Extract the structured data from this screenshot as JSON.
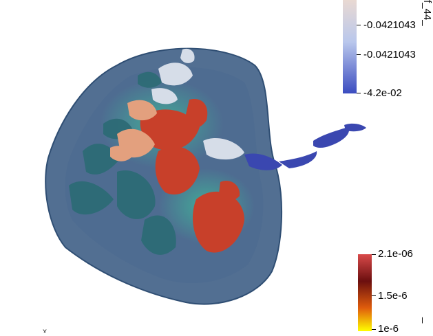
{
  "render": {
    "background": "#ffffff",
    "shell_color": "#3f5f86",
    "surface_colors": {
      "red": "#c8402a",
      "salmon": "#e3a07e",
      "teal": "#2f6f7a",
      "white": "#d6dde8",
      "blue": "#2f3aa8"
    }
  },
  "colorbar_top": {
    "title": "f_44_",
    "labels": [
      "-0.0421043",
      "-0.0421043",
      "-4.2e-02"
    ],
    "colors": [
      "#e9d9d2",
      "#b9c7ec",
      "#3b4cc0"
    ]
  },
  "colorbar_bottom": {
    "title": "_",
    "labels": [
      "2.1e-06",
      "1.5e-6",
      "1e-6"
    ],
    "colors": [
      "#d94a4a",
      "#6b0f0f",
      "#e05d0c",
      "#ffff00"
    ]
  },
  "axis_label": "x"
}
